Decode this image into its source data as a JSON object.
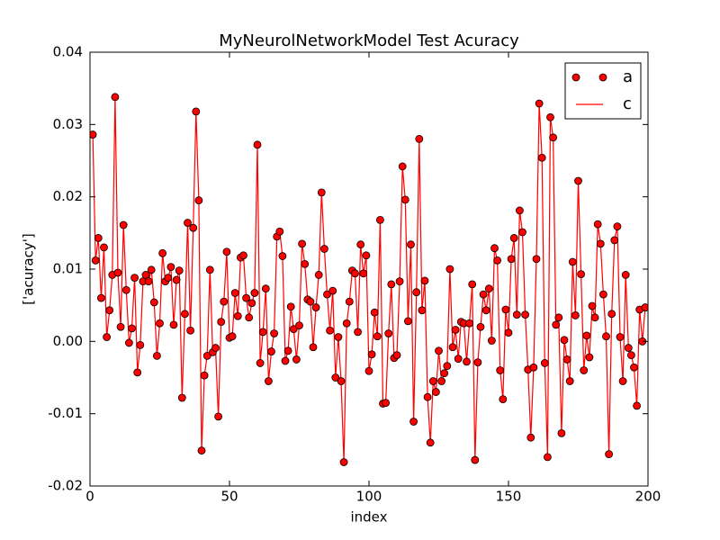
{
  "chart_data": {
    "type": "line",
    "title": "MyNeurolNetworkModel Test Acuracy",
    "xlabel": "index",
    "ylabel": "['acuracy']",
    "x": [
      1,
      2,
      3,
      4,
      5,
      6,
      7,
      8,
      9,
      10,
      11,
      12,
      13,
      14,
      15,
      16,
      17,
      18,
      19,
      20,
      21,
      22,
      23,
      24,
      25,
      26,
      27,
      28,
      29,
      30,
      31,
      32,
      33,
      34,
      35,
      36,
      37,
      38,
      39,
      40,
      41,
      42,
      43,
      44,
      45,
      46,
      47,
      48,
      49,
      50,
      51,
      52,
      53,
      54,
      55,
      56,
      57,
      58,
      59,
      60,
      61,
      62,
      63,
      64,
      65,
      66,
      67,
      68,
      69,
      70,
      71,
      72,
      73,
      74,
      75,
      76,
      77,
      78,
      79,
      80,
      81,
      82,
      83,
      84,
      85,
      86,
      87,
      88,
      89,
      90,
      91,
      92,
      93,
      94,
      95,
      96,
      97,
      98,
      99,
      100,
      101,
      102,
      103,
      104,
      105,
      106,
      107,
      108,
      109,
      110,
      111,
      112,
      113,
      114,
      115,
      116,
      117,
      118,
      119,
      120,
      121,
      122,
      123,
      124,
      125,
      126,
      127,
      128,
      129,
      130,
      131,
      132,
      133,
      134,
      135,
      136,
      137,
      138,
      139,
      140,
      141,
      142,
      143,
      144,
      145,
      146,
      147,
      148,
      149,
      150,
      151,
      152,
      153,
      154,
      155,
      156,
      157,
      158,
      159,
      160,
      161,
      162,
      163,
      164,
      165,
      166,
      167,
      168,
      169,
      170,
      171,
      172,
      173,
      174,
      175,
      176,
      177,
      178,
      179,
      180,
      181,
      182,
      183,
      184,
      185,
      186,
      187,
      188,
      189,
      190,
      191,
      192,
      193,
      194,
      195,
      196,
      197,
      198,
      199
    ],
    "series": [
      {
        "name": "a",
        "style": "markers",
        "color": "#ff0000",
        "values": [
          0.0286,
          0.0112,
          0.0143,
          0.006,
          0.013,
          0.0006,
          0.0043,
          0.0092,
          0.0338,
          0.0095,
          0.002,
          0.0161,
          0.0071,
          -0.0002,
          0.0018,
          0.0088,
          -0.0043,
          -0.0005,
          0.0083,
          0.0092,
          0.0083,
          0.0099,
          0.0054,
          -0.002,
          0.0025,
          0.0122,
          0.0083,
          0.0088,
          0.0103,
          0.0023,
          0.0085,
          0.0098,
          -0.0078,
          0.0038,
          0.0164,
          0.0015,
          0.0157,
          0.0318,
          0.0195,
          -0.0151,
          -0.0047,
          -0.002,
          0.0099,
          -0.0015,
          -0.0009,
          -0.0104,
          0.0027,
          0.0055,
          0.0124,
          0.0005,
          0.0007,
          0.0067,
          0.0035,
          0.0116,
          0.0119,
          0.006,
          0.0033,
          0.0053,
          0.0067,
          0.0272,
          -0.003,
          0.0013,
          0.0073,
          -0.0055,
          -0.0014,
          0.0011,
          0.0145,
          0.0152,
          0.0118,
          -0.0027,
          -0.0013,
          0.0048,
          0.0017,
          -0.0025,
          0.0022,
          0.0135,
          0.0107,
          0.0058,
          0.0055,
          -0.0008,
          0.0047,
          0.0092,
          0.0206,
          0.0128,
          0.0065,
          0.0015,
          0.007,
          -0.005,
          0.0006,
          -0.0055,
          -0.0167,
          0.0025,
          0.0055,
          0.0098,
          0.0094,
          0.0013,
          0.0134,
          0.0094,
          0.0119,
          -0.0041,
          -0.0018,
          0.004,
          0.0007,
          0.0168,
          -0.0086,
          -0.0085,
          0.0011,
          0.0079,
          -0.0023,
          -0.0019,
          0.0083,
          0.0242,
          0.0196,
          0.0028,
          0.0134,
          -0.0111,
          0.0068,
          0.028,
          0.0043,
          0.0084,
          -0.0077,
          -0.014,
          -0.0055,
          -0.007,
          -0.0013,
          -0.0055,
          -0.0044,
          -0.0034,
          0.01,
          -0.0008,
          0.0016,
          -0.0024,
          0.0027,
          0.0025,
          -0.0028,
          0.0025,
          0.0079,
          -0.0164,
          -0.0029,
          0.002,
          0.0065,
          0.0043,
          0.0073,
          0.0001,
          0.0129,
          0.0112,
          -0.004,
          -0.008,
          0.0044,
          0.0012,
          0.0114,
          0.0143,
          0.0037,
          0.0181,
          0.0151,
          0.0037,
          -0.0039,
          -0.0133,
          -0.0036,
          0.0114,
          0.0329,
          0.0254,
          -0.003,
          -0.016,
          0.031,
          0.0282,
          0.0023,
          0.0033,
          -0.0127,
          0.0002,
          -0.0025,
          -0.0055,
          0.011,
          0.0036,
          0.0222,
          0.0093,
          -0.004,
          0.0008,
          -0.0022,
          0.0049,
          0.0033,
          0.0162,
          0.0135,
          0.0065,
          0.0007,
          -0.0156,
          0.0038,
          0.014,
          0.0159,
          0.0006,
          -0.0055,
          0.0092,
          -0.0009,
          -0.0019,
          -0.0036,
          -0.0089,
          0.0044,
          0.0,
          0.0047
        ]
      },
      {
        "name": "c",
        "style": "line",
        "color": "#ff0000",
        "values": [
          0.0286,
          0.0112,
          0.0143,
          0.006,
          0.013,
          0.0006,
          0.0043,
          0.0092,
          0.0338,
          0.0095,
          0.002,
          0.0161,
          0.0071,
          -0.0002,
          0.0018,
          0.0088,
          -0.0043,
          -0.0005,
          0.0083,
          0.0092,
          0.0083,
          0.0099,
          0.0054,
          -0.002,
          0.0025,
          0.0122,
          0.0083,
          0.0088,
          0.0103,
          0.0023,
          0.0085,
          0.0098,
          -0.0078,
          0.0038,
          0.0164,
          0.0015,
          0.0157,
          0.0318,
          0.0195,
          -0.0151,
          -0.0047,
          -0.002,
          0.0099,
          -0.0015,
          -0.0009,
          -0.0104,
          0.0027,
          0.0055,
          0.0124,
          0.0005,
          0.0007,
          0.0067,
          0.0035,
          0.0116,
          0.0119,
          0.006,
          0.0033,
          0.0053,
          0.0067,
          0.0272,
          -0.003,
          0.0013,
          0.0073,
          -0.0055,
          -0.0014,
          0.0011,
          0.0145,
          0.0152,
          0.0118,
          -0.0027,
          -0.0013,
          0.0048,
          0.0017,
          -0.0025,
          0.0022,
          0.0135,
          0.0107,
          0.0058,
          0.0055,
          -0.0008,
          0.0047,
          0.0092,
          0.0206,
          0.0128,
          0.0065,
          0.0015,
          0.007,
          -0.005,
          0.0006,
          -0.0055,
          -0.0167,
          0.0025,
          0.0055,
          0.0098,
          0.0094,
          0.0013,
          0.0134,
          0.0094,
          0.0119,
          -0.0041,
          -0.0018,
          0.004,
          0.0007,
          0.0168,
          -0.0086,
          -0.0085,
          0.0011,
          0.0079,
          -0.0023,
          -0.0019,
          0.0083,
          0.0242,
          0.0196,
          0.0028,
          0.0134,
          -0.0111,
          0.0068,
          0.028,
          0.0043,
          0.0084,
          -0.0077,
          -0.014,
          -0.0055,
          -0.007,
          -0.0013,
          -0.0055,
          -0.0044,
          -0.0034,
          0.01,
          -0.0008,
          0.0016,
          -0.0024,
          0.0027,
          0.0025,
          -0.0028,
          0.0025,
          0.0079,
          -0.0164,
          -0.0029,
          0.002,
          0.0065,
          0.0043,
          0.0073,
          0.0001,
          0.0129,
          0.0112,
          -0.004,
          -0.008,
          0.0044,
          0.0012,
          0.0114,
          0.0143,
          0.0037,
          0.0181,
          0.0151,
          0.0037,
          -0.0039,
          -0.0133,
          -0.0036,
          0.0114,
          0.0329,
          0.0254,
          -0.003,
          -0.016,
          0.031,
          0.0282,
          0.0023,
          0.0033,
          -0.0127,
          0.0002,
          -0.0025,
          -0.0055,
          0.011,
          0.0036,
          0.0222,
          0.0093,
          -0.004,
          0.0008,
          -0.0022,
          0.0049,
          0.0033,
          0.0162,
          0.0135,
          0.0065,
          0.0007,
          -0.0156,
          0.0038,
          0.014,
          0.0159,
          0.0006,
          -0.0055,
          0.0092,
          -0.0009,
          -0.0019,
          -0.0036,
          -0.0089,
          0.0044,
          0.0,
          0.0047
        ]
      }
    ],
    "xlim": [
      0,
      200
    ],
    "xticks": [
      0,
      50,
      100,
      150,
      200
    ],
    "ylim": [
      -0.02,
      0.04
    ],
    "yticks": [
      -0.02,
      -0.01,
      {
        "value": 0,
        "label": "0.00"
      },
      0.01,
      0.02,
      0.03,
      0.04
    ],
    "grid": false,
    "legend": "upper right"
  }
}
